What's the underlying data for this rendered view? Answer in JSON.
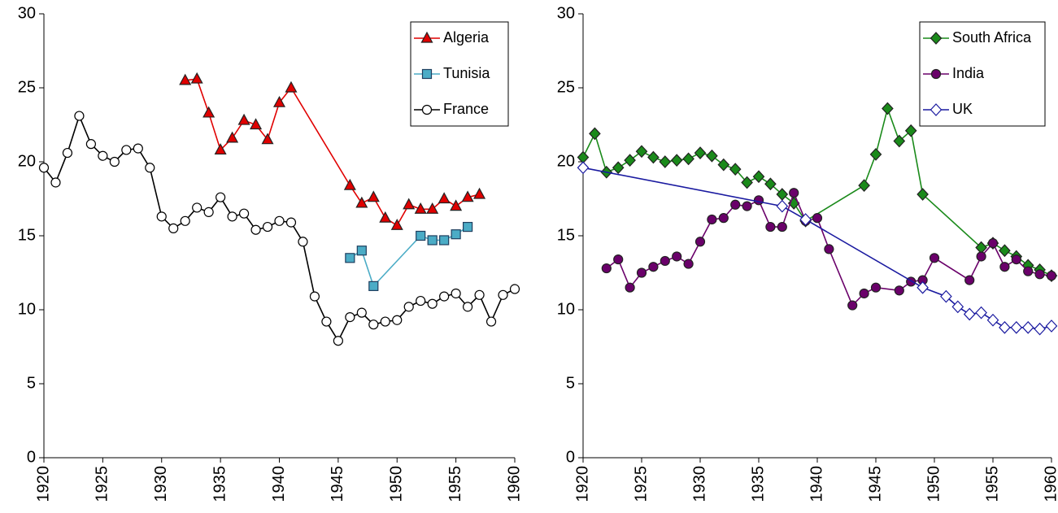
{
  "chart_data": [
    {
      "type": "line",
      "xlim": [
        1920,
        1960
      ],
      "xticks": [
        1920,
        1925,
        1930,
        1935,
        1940,
        1945,
        1950,
        1955,
        1960
      ],
      "ylim": [
        0,
        30
      ],
      "yticks": [
        0,
        5,
        10,
        15,
        20,
        25,
        30
      ],
      "legend": "top-right",
      "series": [
        {
          "name": "Algeria",
          "color": "#e00000",
          "marker": "triangle",
          "x": [
            1932,
            1933,
            1934,
            1935,
            1936,
            1937,
            1938,
            1939,
            1940,
            1941,
            1946,
            1947,
            1948,
            1949,
            1950,
            1951,
            1952,
            1953,
            1954,
            1955,
            1956,
            1957
          ],
          "values": [
            25.5,
            25.6,
            23.3,
            20.8,
            21.6,
            22.8,
            22.5,
            21.5,
            24.0,
            25.0,
            18.4,
            17.2,
            17.6,
            16.2,
            15.7,
            17.1,
            16.8,
            16.8,
            17.5,
            17.0,
            17.6,
            17.8
          ]
        },
        {
          "name": "Tunisia",
          "color": "#4bacc6",
          "marker": "square",
          "x": [
            1946,
            1947,
            1948,
            1952,
            1953,
            1954,
            1955,
            1956
          ],
          "values": [
            13.5,
            14.0,
            11.6,
            15.0,
            14.7,
            14.7,
            15.1,
            15.6
          ]
        },
        {
          "name": "France",
          "color": "#000000",
          "marker": "circle-open",
          "x": [
            1920,
            1921,
            1922,
            1923,
            1924,
            1925,
            1926,
            1927,
            1928,
            1929,
            1930,
            1931,
            1932,
            1933,
            1934,
            1935,
            1936,
            1937,
            1938,
            1939,
            1940,
            1941,
            1942,
            1943,
            1944,
            1945,
            1946,
            1947,
            1948,
            1949,
            1950,
            1951,
            1952,
            1953,
            1954,
            1955,
            1956,
            1957,
            1958,
            1959,
            1960
          ],
          "values": [
            19.6,
            18.6,
            20.6,
            23.1,
            21.2,
            20.4,
            20.0,
            20.8,
            20.9,
            19.6,
            16.3,
            15.5,
            16.0,
            16.9,
            16.6,
            17.6,
            16.3,
            16.5,
            15.4,
            15.6,
            16.0,
            15.9,
            14.6,
            10.9,
            9.2,
            7.9,
            9.5,
            9.8,
            9.0,
            9.2,
            9.3,
            10.2,
            10.6,
            10.4,
            10.9,
            11.1,
            10.2,
            11.0,
            9.2,
            11.0,
            11.4
          ]
        }
      ]
    },
    {
      "type": "line",
      "xlim": [
        1920,
        1960
      ],
      "xticks": [
        1920,
        1925,
        1930,
        1935,
        1940,
        1945,
        1950,
        1955,
        1960
      ],
      "ylim": [
        0,
        30
      ],
      "yticks": [
        0,
        5,
        10,
        15,
        20,
        25,
        30
      ],
      "legend": "top-right",
      "series": [
        {
          "name": "South Africa",
          "color": "#1a8a1a",
          "marker": "diamond",
          "x": [
            1920,
            1921,
            1922,
            1923,
            1924,
            1925,
            1926,
            1927,
            1928,
            1929,
            1930,
            1931,
            1932,
            1933,
            1934,
            1935,
            1936,
            1937,
            1938,
            1939,
            1944,
            1945,
            1946,
            1947,
            1948,
            1949,
            1954,
            1955,
            1956,
            1957,
            1958,
            1959,
            1960
          ],
          "values": [
            20.3,
            21.9,
            19.3,
            19.6,
            20.1,
            20.7,
            20.3,
            20.0,
            20.1,
            20.2,
            20.6,
            20.4,
            19.8,
            19.5,
            18.6,
            19.0,
            18.5,
            17.8,
            17.2,
            16.0,
            18.4,
            20.5,
            23.6,
            21.4,
            22.1,
            17.8,
            14.2,
            14.5,
            14.0,
            13.6,
            13.0,
            12.7,
            12.3
          ]
        },
        {
          "name": "India",
          "color": "#6a006a",
          "marker": "circle",
          "x": [
            1922,
            1923,
            1924,
            1925,
            1926,
            1927,
            1928,
            1929,
            1930,
            1931,
            1932,
            1933,
            1934,
            1935,
            1936,
            1937,
            1938,
            1939,
            1940,
            1941,
            1943,
            1944,
            1945,
            1947,
            1948,
            1949,
            1950,
            1953,
            1954,
            1955,
            1956,
            1957,
            1958,
            1959,
            1960
          ],
          "values": [
            12.8,
            13.4,
            11.5,
            12.5,
            12.9,
            13.3,
            13.6,
            13.1,
            14.6,
            16.1,
            16.2,
            17.1,
            17.0,
            17.4,
            15.6,
            15.6,
            17.9,
            16.0,
            16.2,
            14.1,
            10.3,
            11.1,
            11.5,
            11.3,
            11.9,
            12.0,
            13.5,
            12.0,
            13.6,
            14.5,
            12.9,
            13.4,
            12.6,
            12.4,
            12.3
          ]
        },
        {
          "name": "UK",
          "color": "#1a1aa0",
          "marker": "diamond-open",
          "x": [
            1920,
            1937,
            1939,
            1949,
            1951,
            1952,
            1953,
            1954,
            1955,
            1956,
            1957,
            1958,
            1959,
            1960
          ],
          "values": [
            19.6,
            17.0,
            16.1,
            11.5,
            10.9,
            10.2,
            9.7,
            9.8,
            9.3,
            8.8,
            8.8,
            8.8,
            8.7,
            8.9
          ]
        }
      ]
    }
  ]
}
